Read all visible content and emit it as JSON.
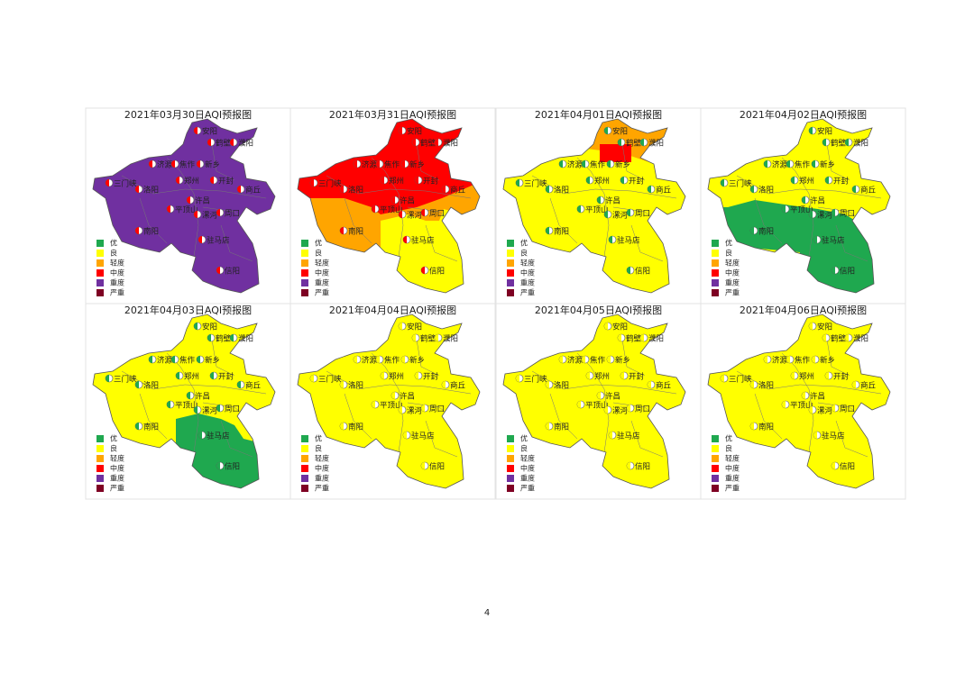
{
  "panels": [
    {
      "title": "2021年03月30日AQI预报图",
      "fill": "#7030a0"
    },
    {
      "title": "2021年03月31日AQI预报图",
      "fill": "#ff0000"
    },
    {
      "title": "2021年04月01日AQI预报图",
      "fill": "#ffff00"
    },
    {
      "title": "2021年04月02日AQI预报图",
      "fill": "#ffff00"
    },
    {
      "title": "2021年04月03日AQI预报图",
      "fill": "#ffff00"
    },
    {
      "title": "2021年04月04日AQI预报图",
      "fill": "#ffff00"
    },
    {
      "title": "2021年04月05日AQI预报图",
      "fill": "#ffff00"
    },
    {
      "title": "2021年04月06日AQI预报图",
      "fill": "#ffff00"
    }
  ],
  "legend": [
    {
      "label": "优",
      "color": "#1fa84f"
    },
    {
      "label": "良",
      "color": "#ffff00"
    },
    {
      "label": "轻度",
      "color": "#ffa500"
    },
    {
      "label": "中度",
      "color": "#ff0000"
    },
    {
      "label": "重度",
      "color": "#7030a0"
    },
    {
      "label": "严重",
      "color": "#7e0023"
    }
  ],
  "cities": [
    "安阳",
    "鹤壁",
    "濮阳",
    "济源",
    "焦作",
    "新乡",
    "三门峡",
    "洛阳",
    "郑州",
    "开封",
    "商丘",
    "许昌",
    "平顶山",
    "漯河",
    "周口",
    "南阳",
    "驻马店",
    "信阳"
  ],
  "page_number": "4"
}
